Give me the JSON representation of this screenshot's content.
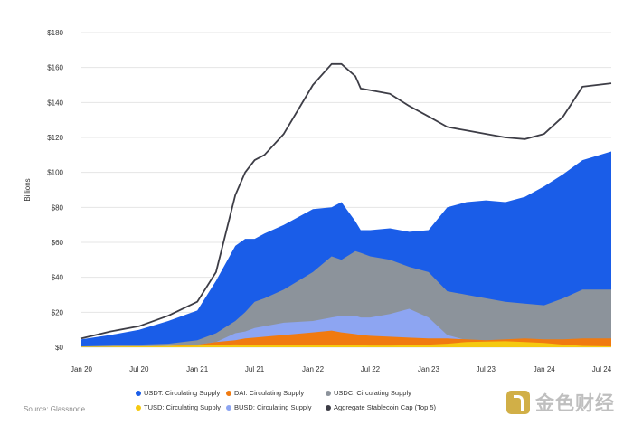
{
  "chart_data": {
    "type": "area",
    "title": "",
    "xlabel": "",
    "ylabel": "Billions",
    "y_unit_prefix": "$",
    "ylim": [
      0,
      180
    ],
    "yticks": [
      0,
      20,
      40,
      60,
      80,
      100,
      120,
      140,
      160,
      180
    ],
    "ytick_labels": [
      "$0",
      "$20",
      "$40",
      "$60",
      "$80",
      "$100",
      "$120",
      "$140",
      "$160",
      "$180"
    ],
    "xlim": [
      "2020-01-01",
      "2024-07-31"
    ],
    "xtick_labels": [
      "Jan 20",
      "Jul 20",
      "Jan 21",
      "Jul 21",
      "Jan 22",
      "Jul 22",
      "Jan 23",
      "Jul 23",
      "Jan 24",
      "Jul 24"
    ],
    "xtick_dates": [
      "2020-01-01",
      "2020-07-01",
      "2021-01-01",
      "2021-07-01",
      "2022-01-01",
      "2022-07-01",
      "2023-01-01",
      "2023-07-01",
      "2024-01-01",
      "2024-07-01"
    ],
    "grid": true,
    "stacked": false,
    "x": [
      "2020-01-01",
      "2020-04-01",
      "2020-07-01",
      "2020-10-01",
      "2021-01-01",
      "2021-03-01",
      "2021-05-01",
      "2021-06-01",
      "2021-07-01",
      "2021-08-01",
      "2021-10-01",
      "2022-01-01",
      "2022-03-01",
      "2022-04-01",
      "2022-05-15",
      "2022-06-01",
      "2022-07-01",
      "2022-09-01",
      "2022-11-01",
      "2023-01-01",
      "2023-03-01",
      "2023-05-01",
      "2023-07-01",
      "2023-09-01",
      "2023-11-01",
      "2024-01-01",
      "2024-03-01",
      "2024-05-01",
      "2024-07-31"
    ],
    "series": [
      {
        "name": "Aggregate Stablecoin Cap (Top 5)",
        "color": "#3d3d46",
        "style": "line",
        "values": [
          5,
          9,
          12,
          18,
          26,
          43,
          87,
          100,
          107,
          110,
          122,
          150,
          162,
          162,
          155,
          148,
          147,
          145,
          138,
          132,
          126,
          124,
          122,
          120,
          119,
          122,
          132,
          149,
          151
        ]
      },
      {
        "name": "USDT: Circulating Supply",
        "color": "#1a5de8",
        "style": "area",
        "values": [
          4.5,
          7,
          10,
          15,
          21,
          38,
          58,
          62,
          62,
          65,
          70,
          79,
          80,
          83,
          72,
          67,
          67,
          68,
          66,
          67,
          80,
          83,
          84,
          83,
          86,
          92,
          99,
          107,
          112
        ]
      },
      {
        "name": "USDC: Circulating Supply",
        "color": "#8c939b",
        "style": "area",
        "values": [
          0.5,
          1,
          1.5,
          2,
          4,
          8,
          15,
          20,
          26,
          28,
          33,
          43,
          52,
          50,
          55,
          54,
          52,
          50,
          46,
          43,
          32,
          30,
          28,
          26,
          25,
          24,
          28,
          33,
          33
        ]
      },
      {
        "name": "BUSD: Circulating Supply",
        "color": "#8da5f2",
        "style": "area",
        "values": [
          0.2,
          0.3,
          0.5,
          1,
          1.5,
          3,
          8,
          9,
          11,
          12,
          14,
          15,
          17,
          18,
          18,
          17,
          17,
          19,
          22,
          17,
          7,
          4,
          3,
          2.5,
          2,
          1.5,
          1,
          0.8,
          0.5
        ]
      },
      {
        "name": "DAI: Circulating Supply",
        "color": "#f07a10",
        "style": "area",
        "values": [
          0.1,
          0.2,
          0.3,
          0.8,
          1.5,
          3,
          4,
          5,
          5.5,
          6,
          7,
          8.5,
          9.5,
          8.5,
          7.5,
          7,
          6.5,
          6,
          5.5,
          5,
          5,
          4.5,
          4,
          4.5,
          5,
          4.5,
          4.5,
          5,
          5
        ]
      },
      {
        "name": "TUSD: Circulating Supply",
        "color": "#f5c910",
        "style": "area",
        "values": [
          0.3,
          0.4,
          0.5,
          0.8,
          1,
          1.5,
          1.6,
          1.5,
          1.4,
          1.3,
          1.3,
          1.2,
          1.2,
          1.1,
          1.1,
          1.1,
          1,
          1,
          1.1,
          1.5,
          2,
          3,
          3.2,
          3.4,
          3,
          2.5,
          1.5,
          0.8,
          0.5
        ]
      }
    ],
    "legend": [
      {
        "label": "USDT: Circulating Supply",
        "color": "#1a5de8"
      },
      {
        "label": "DAI: Circulating Supply",
        "color": "#f07a10"
      },
      {
        "label": "USDC: Circulating Supply",
        "color": "#8c939b"
      },
      {
        "label": "TUSD: Circulating Supply",
        "color": "#f5c910"
      },
      {
        "label": "BUSD: Circulating Supply",
        "color": "#8da5f2"
      },
      {
        "label": "Aggregate Stablecoin Cap (Top 5)",
        "color": "#3d3d46"
      }
    ],
    "legend_position": "bottom"
  },
  "source": "Source: Glassnode",
  "watermark": {
    "text": "金色财经",
    "accent": "#c9a227"
  }
}
